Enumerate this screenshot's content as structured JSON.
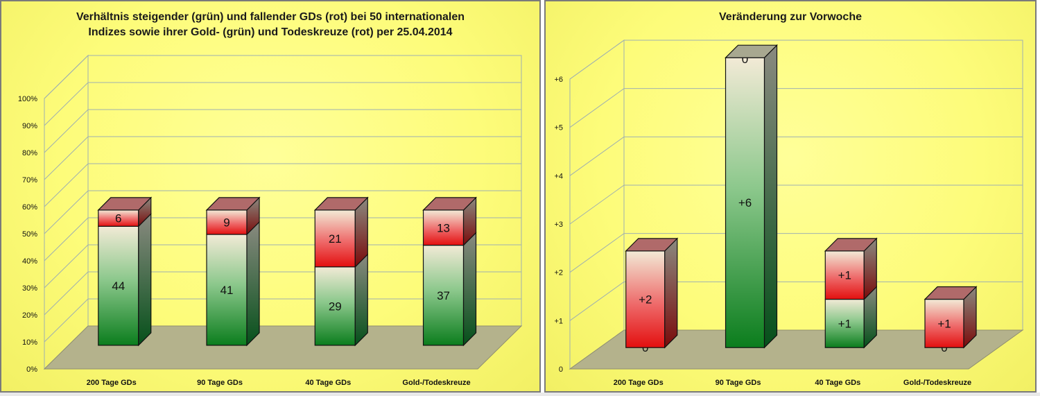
{
  "chart_data": [
    {
      "type": "bar",
      "stacked": true,
      "three_d": true,
      "title_lines": [
        "Verhältnis steigender (grün) und fallender GDs (rot) bei  50 internationalen",
        "Indizes sowie ihrer Gold- (grün) und Todeskreuze (rot) per 25.04.2014"
      ],
      "categories": [
        "200 Tage GDs",
        "90 Tage GDs",
        "40 Tage GDs",
        "Gold-/Todeskreuze"
      ],
      "series": [
        {
          "color": "#1a8a2e",
          "values": [
            44,
            41,
            29,
            37
          ]
        },
        {
          "color": "#e01b1b",
          "values": [
            6,
            9,
            21,
            13
          ]
        }
      ],
      "ylim": [
        0,
        100
      ],
      "y_ticks": [
        "0%",
        "10%",
        "20%",
        "30%",
        "40%",
        "50%",
        "60%",
        "70%",
        "80%",
        "90%",
        "100%"
      ],
      "grid": true
    },
    {
      "type": "bar",
      "stacked": true,
      "three_d": true,
      "title": "Veränderung zur Vorwoche",
      "categories": [
        "200 Tage GDs",
        "90 Tage GDs",
        "40 Tage GDs",
        "Gold-/Todeskreuze"
      ],
      "series": [
        {
          "color": "#1a8a2e",
          "values": [
            0,
            6,
            1,
            0
          ],
          "labels": [
            "0",
            "+6",
            "+1",
            "0"
          ]
        },
        {
          "color": "#e01b1b",
          "values": [
            2,
            0,
            1,
            1
          ],
          "labels": [
            "+2",
            "0",
            "+1",
            "+1"
          ]
        }
      ],
      "ylim": [
        0,
        6
      ],
      "y_ticks": [
        "0",
        "+1",
        "+2",
        "+3",
        "+4",
        "+5",
        "+6"
      ],
      "grid": true
    }
  ]
}
